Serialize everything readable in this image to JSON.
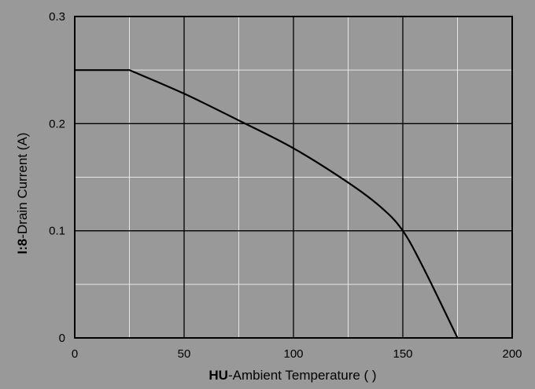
{
  "chart_data": {
    "type": "line",
    "title": "",
    "xlabel_bold": "HU",
    "xlabel_text": "-Ambient Temperature (   )",
    "ylabel_bold": "I:8",
    "ylabel_text": "-Drain Current  (A)",
    "xlim": [
      0,
      200
    ],
    "ylim": [
      0,
      0.3
    ],
    "x_ticks": [
      "0",
      "50",
      "100",
      "150",
      "200"
    ],
    "y_ticks": [
      "0",
      "0.1",
      "0.2",
      "0.3"
    ],
    "grid": true,
    "series": [
      {
        "x": [
          0,
          25,
          50,
          75,
          100,
          125,
          140,
          150,
          160,
          175
        ],
        "values": [
          0.25,
          0.25,
          0.228,
          0.203,
          0.177,
          0.145,
          0.122,
          0.1,
          0.063,
          0
        ]
      }
    ],
    "colors": {
      "background": "#999999",
      "plot_area": "#999999",
      "line": "#000000",
      "grid_major": "#000000",
      "grid_minor": "#e6e6e6"
    }
  }
}
